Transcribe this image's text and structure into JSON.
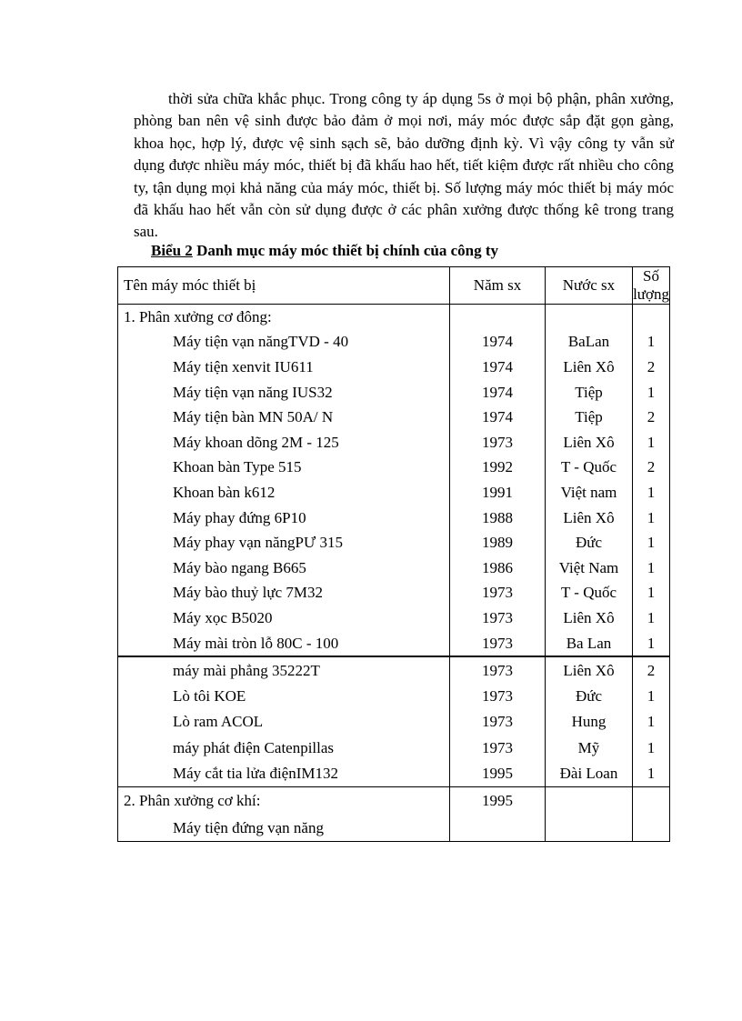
{
  "paragraph": "thời sửa chữa khắc phục. Trong công ty áp dụng 5s ở mọi bộ phận, phân xưởng, phòng ban nên vệ sinh được bảo đảm ở mọi nơi, máy móc được sắp đặt gọn gàng, khoa học, hợp lý, được vệ sinh sạch sẽ, bảo dưỡng định kỳ. Vì vậy công ty vẫn sử dụng được nhiều máy móc, thiết bị đã khấu hao hết, tiết kiệm được rất nhiều cho công ty, tận dụng mọi khả năng của máy móc, thiết bị. Số lượng máy móc thiết bị máy móc đã khấu hao hết vẫn còn sử dụng được ở các phân xưởng được thống kê trong trang sau.",
  "caption": {
    "label": "Biểu 2",
    "title": " Danh mục máy móc thiết bị chính của công ty"
  },
  "table": {
    "headers": [
      "Tên máy móc thiết bị",
      "Năm sx",
      "Nước sx",
      "Số lượng"
    ],
    "group1": [
      [
        "1. Phân xưởng cơ đông:",
        "",
        "",
        ""
      ],
      [
        "Máy tiện vạn năngTVD - 40",
        "1974",
        "BaLan",
        "1"
      ],
      [
        "Máy tiện xenvit IU611",
        "1974",
        "Liên Xô",
        "2"
      ],
      [
        "Máy tiện vạn năng IUS32",
        "1974",
        "Tiệp",
        "1"
      ],
      [
        "Máy tiện bàn MN 50A/ N",
        "1974",
        "Tiệp",
        "2"
      ],
      [
        "Máy khoan dõng 2M - 125",
        "1973",
        "Liên Xô",
        "1"
      ],
      [
        "Khoan bàn Type 515",
        "1992",
        "T - Quốc",
        "2"
      ],
      [
        "Khoan bàn k612",
        "1991",
        "Việt nam",
        "1"
      ],
      [
        "Máy phay đứng 6P10",
        "1988",
        "Liên Xô",
        "1"
      ],
      [
        "Máy phay vạn năngPƯ 315",
        "1989",
        "Đức",
        "1"
      ],
      [
        "Máy bào ngang B665",
        "1986",
        "Việt Nam",
        "1"
      ],
      [
        "Máy bào thuỷ lực 7M32",
        "1973",
        "T - Quốc",
        "1"
      ],
      [
        "Máy xọc B5020",
        "1973",
        "Liên Xô",
        "1"
      ],
      [
        "Máy mài tròn lỗ 80C - 100",
        "1973",
        "Ba Lan",
        "1"
      ]
    ],
    "group2": [
      [
        "máy mài phẳng 35222T",
        "1973",
        "Liên Xô",
        "2"
      ],
      [
        "Lò tôi KOE",
        "1973",
        "Đức",
        "1"
      ],
      [
        "Lò ram ACOL",
        "1973",
        "Hung",
        "1"
      ],
      [
        "máy phát điện Catenpillas",
        "1973",
        "Mỹ",
        "1"
      ],
      [
        "Máy cắt tia lửa điệnIM132",
        "1995",
        "Đài Loan",
        "1"
      ]
    ],
    "group3": [
      [
        "2. Phân xưởng cơ khí:",
        "1995",
        "",
        ""
      ],
      [
        "Máy tiện đứng vạn năng",
        "",
        "",
        ""
      ]
    ]
  }
}
